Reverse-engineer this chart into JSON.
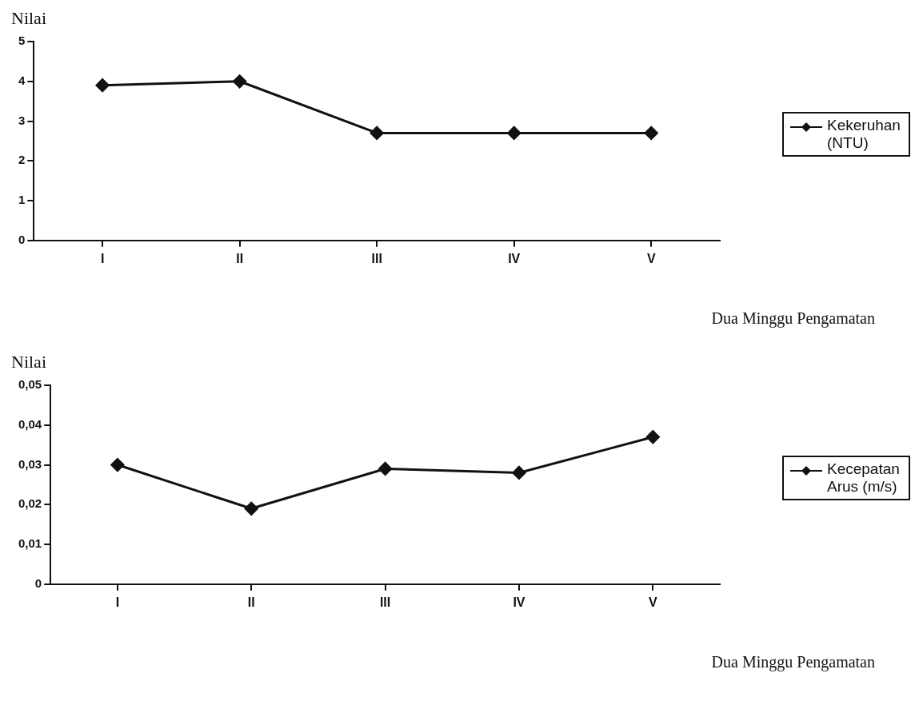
{
  "chart_data": [
    {
      "type": "line",
      "ylabel": "Nilai",
      "xlabel": "Dua Minggu Pengamatan",
      "categories": [
        "I",
        "II",
        "III",
        "IV",
        "V"
      ],
      "series": [
        {
          "name": "Kekeruhan (NTU)",
          "color": "#111111",
          "values": [
            3.9,
            4.0,
            2.7,
            2.7,
            2.7
          ]
        }
      ],
      "ylim": [
        0,
        5
      ],
      "yticks": [
        0,
        1,
        2,
        3,
        4,
        5
      ],
      "grid": false,
      "legend": "right",
      "marker": "diamond",
      "line_style": "solid"
    },
    {
      "type": "line",
      "ylabel": "Nilai",
      "xlabel": "Dua Minggu Pengamatan",
      "categories": [
        "I",
        "II",
        "III",
        "IV",
        "V"
      ],
      "series": [
        {
          "name": "Kecepatan Arus (m/s)",
          "color": "#111111",
          "values": [
            0.03,
            0.019,
            0.029,
            0.028,
            0.037
          ]
        }
      ],
      "ylim": [
        0,
        0.05
      ],
      "yticks": [
        0,
        {
          "value": 0.01,
          "label": "0,01"
        },
        {
          "value": 0.02,
          "label": "0,02"
        },
        {
          "value": 0.03,
          "label": "0,03"
        },
        {
          "value": 0.04,
          "label": "0,04"
        },
        {
          "value": 0.05,
          "label": "0,05"
        }
      ],
      "grid": false,
      "legend": "right",
      "marker": "diamond",
      "line_style": "solid"
    }
  ]
}
